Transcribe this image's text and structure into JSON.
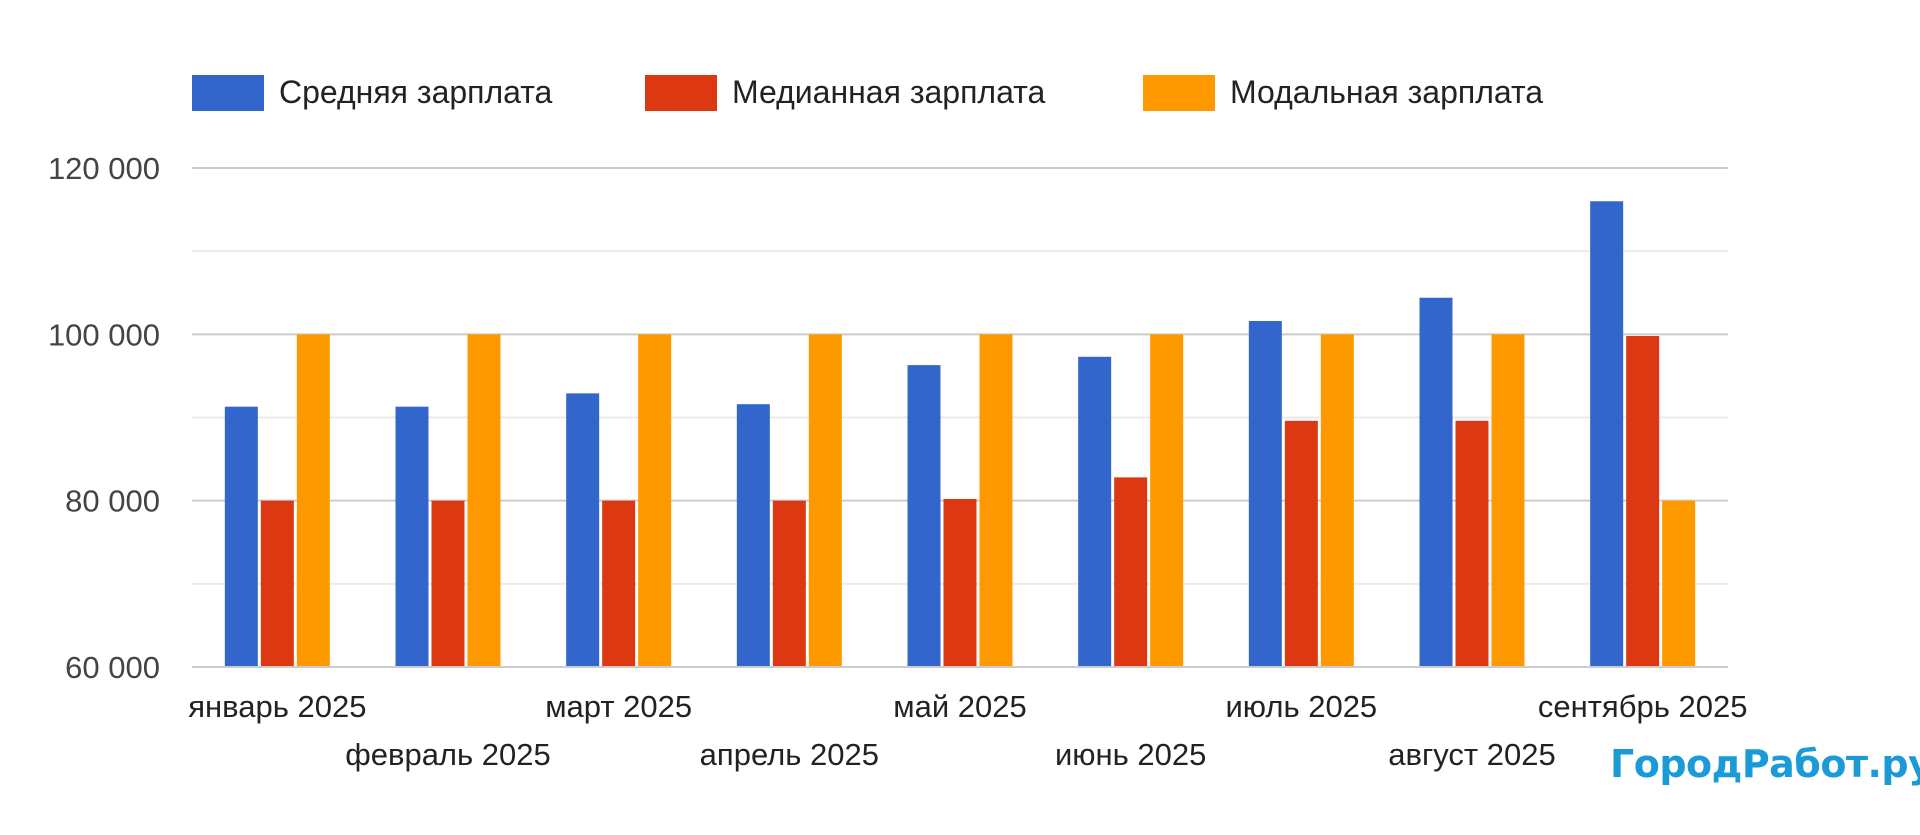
{
  "chart_data": {
    "type": "bar",
    "title": "",
    "xlabel": "",
    "ylabel": "",
    "ylim": [
      60000,
      120000
    ],
    "yticks": [
      60000,
      80000,
      100000,
      120000
    ],
    "ytick_labels": [
      "60 000",
      "80 000",
      "100 000",
      "120 000"
    ],
    "minor_gridlines": [
      70000,
      90000,
      110000
    ],
    "grid": true,
    "legend_position": "top-left",
    "categories": [
      "январь 2025",
      "февраль 2025",
      "март 2025",
      "апрель 2025",
      "май 2025",
      "июнь 2025",
      "июль 2025",
      "август 2025",
      "сентябрь 2025"
    ],
    "series": [
      {
        "name": "Средняя зарплата",
        "color": "#3366cc",
        "values": [
          91300,
          91300,
          92900,
          91600,
          96300,
          97300,
          101600,
          104400,
          116000
        ]
      },
      {
        "name": "Медианная зарплата",
        "color": "#dc3912",
        "values": [
          80000,
          80000,
          80000,
          80000,
          80200,
          82800,
          89600,
          89600,
          99800
        ]
      },
      {
        "name": "Модальная зарплата",
        "color": "#ff9900",
        "values": [
          100000,
          100000,
          100000,
          100000,
          100000,
          100000,
          100000,
          100000,
          80000
        ]
      }
    ]
  },
  "watermark": {
    "text": "ГородРабот.ру",
    "color": "#1a9ad6"
  }
}
